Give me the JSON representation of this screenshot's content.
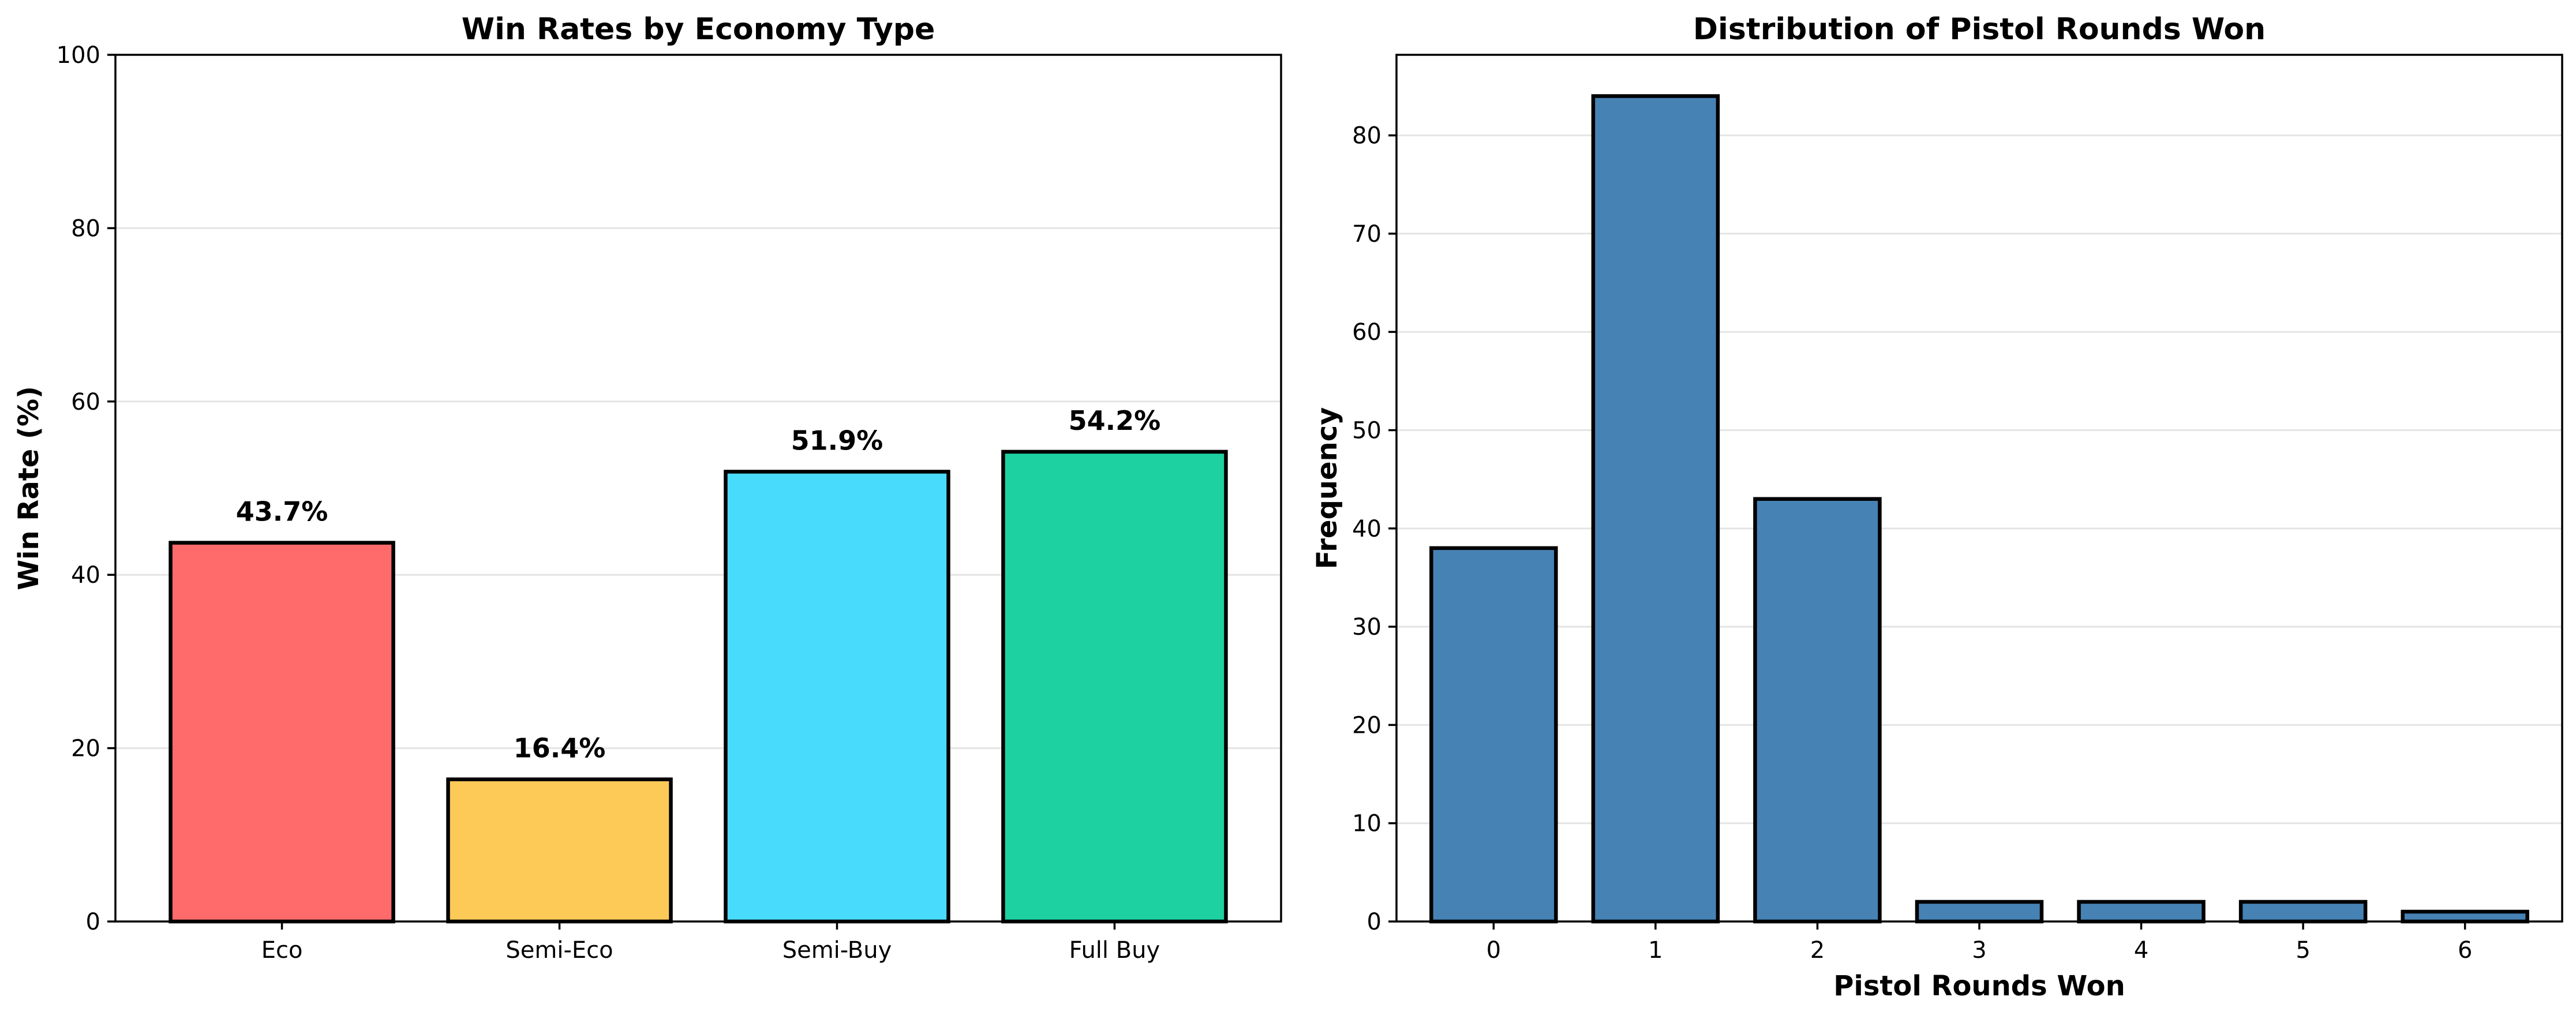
{
  "chart_data": [
    {
      "type": "bar",
      "title": "Win Rates by Economy Type",
      "xlabel": "",
      "ylabel": "Win Rate (%)",
      "categories": [
        "Eco",
        "Semi-Eco",
        "Semi-Buy",
        "Full Buy"
      ],
      "values": [
        43.7,
        16.4,
        51.9,
        54.2
      ],
      "data_labels": [
        "43.7%",
        "16.4%",
        "51.9%",
        "54.2%"
      ],
      "colors": [
        "#ff6b6b",
        "#feca57",
        "#48dbfb",
        "#1dd1a1"
      ],
      "ylim": [
        0,
        100
      ],
      "yticks": [
        0,
        20,
        40,
        60,
        80,
        100
      ],
      "grid": true
    },
    {
      "type": "bar",
      "title": "Distribution of Pistol Rounds Won",
      "xlabel": "Pistol Rounds Won",
      "ylabel": "Frequency",
      "categories": [
        "0",
        "1",
        "2",
        "3",
        "4",
        "5",
        "6"
      ],
      "values": [
        38,
        84,
        43,
        2,
        2,
        2,
        1
      ],
      "colors": [
        "#4682b4"
      ],
      "ylim": [
        0,
        88.2
      ],
      "yticks": [
        0,
        10,
        20,
        30,
        40,
        50,
        60,
        70,
        80
      ],
      "grid": true
    }
  ]
}
